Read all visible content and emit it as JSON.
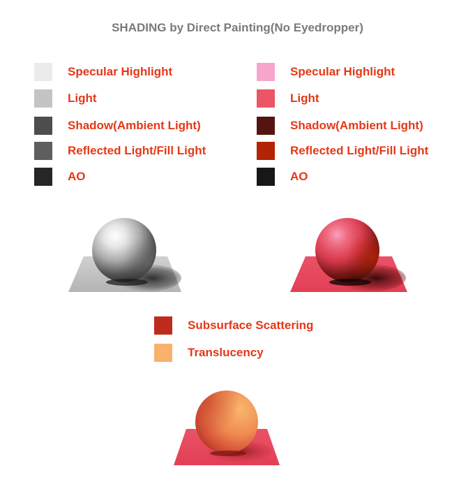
{
  "title": "SHADING by Direct Painting(No Eyedropper)",
  "legend_gray": [
    {
      "label": "Specular Highlight",
      "color": "#ebebeb"
    },
    {
      "label": "Light",
      "color": "#c4c4c4"
    },
    {
      "label": "Shadow(Ambient Light)",
      "color": "#4d4d4d"
    },
    {
      "label": "Reflected Light/Fill Light",
      "color": "#5e5e5e"
    },
    {
      "label": "AO",
      "color": "#262626"
    }
  ],
  "legend_red": [
    {
      "label": "Specular Highlight",
      "color": "#f5a6ca"
    },
    {
      "label": "Light",
      "color": "#ec5566"
    },
    {
      "label": "Shadow(Ambient Light)",
      "color": "#541510"
    },
    {
      "label": "Reflected Light/Fill Light",
      "color": "#b32306"
    },
    {
      "label": "AO",
      "color": "#171717"
    }
  ],
  "legend_extra": [
    {
      "label": "Subsurface Scattering",
      "color": "#bf2c1d"
    },
    {
      "label": "Translucency",
      "color": "#f8b26c"
    }
  ],
  "colors": {
    "label_text": "#e53818",
    "title_text": "#7a7a7a"
  }
}
